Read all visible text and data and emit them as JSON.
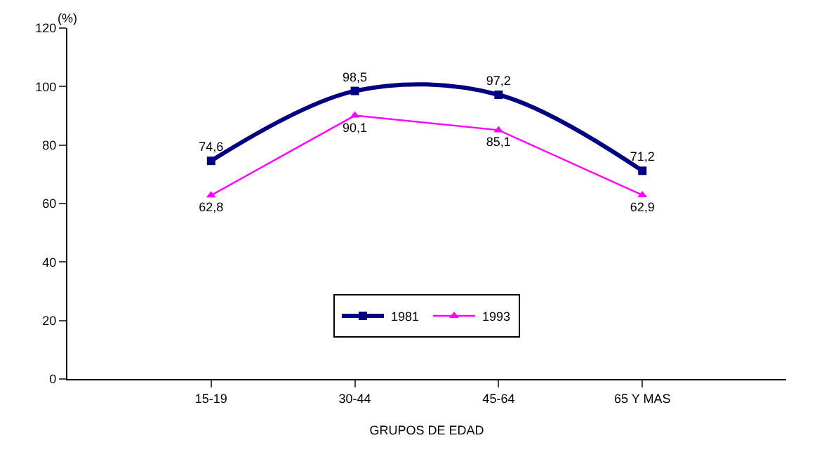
{
  "chart_data": {
    "type": "line",
    "ylabel": "(%)",
    "xlabel": "GRUPOS DE EDAD",
    "categories": [
      null,
      "15-19",
      "30-44",
      "45-64",
      "65 Y MAS",
      null
    ],
    "series": [
      {
        "name": "1981",
        "color": "#000080",
        "values": [
          null,
          74.6,
          98.5,
          97.2,
          71.2,
          null
        ],
        "value_labels": [
          null,
          "74,6",
          "98,5",
          "97,2",
          "71,2",
          null
        ],
        "marker": "square"
      },
      {
        "name": "1993",
        "color": "#ff00ff",
        "values": [
          null,
          62.8,
          90.1,
          85.1,
          62.9,
          null
        ],
        "value_labels": [
          null,
          "62,8",
          "90,1",
          "85,1",
          "62,9",
          null
        ],
        "marker": "triangle"
      }
    ],
    "ylim": [
      0,
      120
    ],
    "yticks": [
      0,
      20,
      40,
      60,
      80,
      100,
      120
    ],
    "legend": "bottom"
  }
}
